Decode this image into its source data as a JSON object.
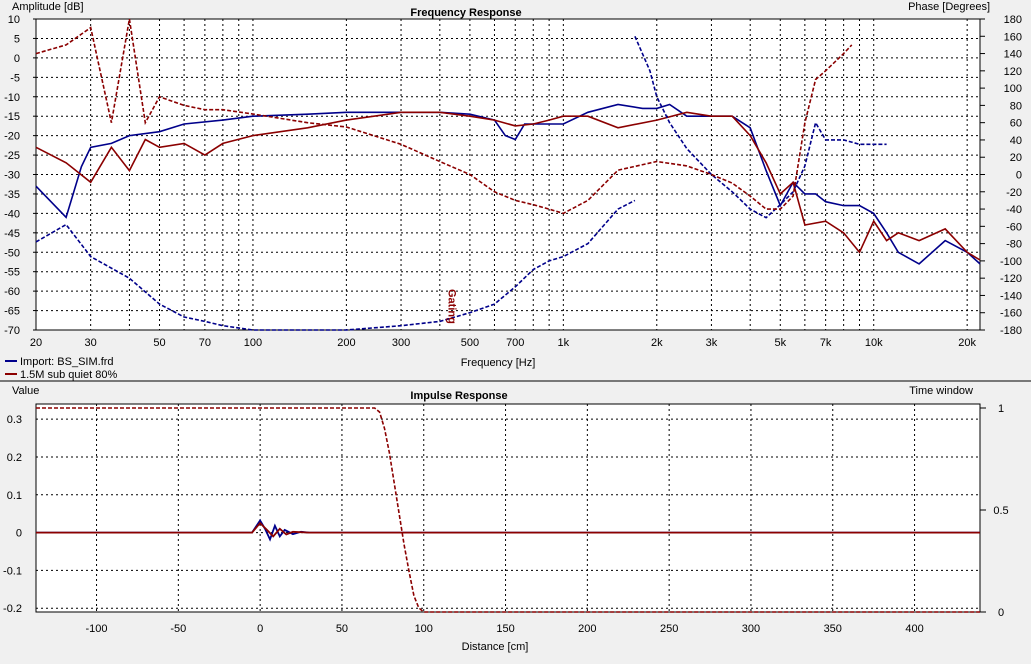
{
  "colors": {
    "blue": "#00008b",
    "red": "#8b0000",
    "grid": "#000000",
    "bg": "#ffffff",
    "window": "#f0f0f0"
  },
  "frequency_chart": {
    "title": "Frequency Response",
    "y_left_label": "Amplitude [dB]",
    "y_right_label": "Phase [Degrees]",
    "x_label": "Frequency [Hz]",
    "gating_label": "Gating",
    "x_ticks": [
      "20",
      "30",
      "50",
      "70",
      "100",
      "200",
      "300",
      "500",
      "700",
      "1k",
      "2k",
      "3k",
      "5k",
      "7k",
      "10k",
      "20k"
    ],
    "x_tick_values": [
      20,
      30,
      50,
      70,
      100,
      200,
      300,
      500,
      700,
      1000,
      2000,
      3000,
      5000,
      7000,
      10000,
      20000
    ],
    "y_left_ticks": [
      "10",
      "5",
      "0",
      "-5",
      "-10",
      "-15",
      "-20",
      "-25",
      "-30",
      "-35",
      "-40",
      "-45",
      "-50",
      "-55",
      "-60",
      "-65",
      "-70"
    ],
    "y_right_ticks": [
      "180",
      "160",
      "140",
      "120",
      "100",
      "80",
      "60",
      "40",
      "20",
      "0",
      "-20",
      "-40",
      "-60",
      "-80",
      "-100",
      "-120",
      "-140",
      "-160",
      "-180"
    ],
    "legend": [
      {
        "label": "Import: BS_SIM.frd",
        "color": "#00008b"
      },
      {
        "label": "1.5M sub quiet 80%",
        "color": "#8b0000"
      }
    ]
  },
  "impulse_chart": {
    "title": "Impulse Response",
    "y_left_label": "Value",
    "y_right_label": "Time window",
    "x_label": "Distance [cm]",
    "x_ticks": [
      "-100",
      "-50",
      "0",
      "50",
      "100",
      "150",
      "200",
      "250",
      "300",
      "350",
      "400"
    ],
    "y_left_ticks": [
      "0.3",
      "0.2",
      "0.1",
      "0",
      "-0.1",
      "-0.2"
    ],
    "y_right_ticks": [
      "1",
      "0.5",
      "0"
    ]
  },
  "chart_data": [
    {
      "type": "line",
      "title": "Frequency Response",
      "xlabel": "Frequency [Hz]",
      "ylabel": "Amplitude [dB]",
      "y2label": "Phase [Degrees]",
      "xscale": "log",
      "xlim": [
        20,
        22000
      ],
      "ylim": [
        -70,
        10
      ],
      "y2lim": [
        -180,
        180
      ],
      "grid": true,
      "legend_position": "bottom-left",
      "series": [
        {
          "name": "Import: BS_SIM.frd",
          "color": "#00008b",
          "style": "solid",
          "axis": "amplitude",
          "x": [
            20,
            25,
            28,
            30,
            35,
            40,
            50,
            60,
            80,
            100,
            150,
            200,
            300,
            400,
            500,
            600,
            650,
            700,
            750,
            800,
            900,
            1000,
            1200,
            1500,
            1800,
            2000,
            2200,
            2500,
            3000,
            3500,
            4000,
            4500,
            5000,
            5500,
            6000,
            6500,
            7000,
            8000,
            9000,
            10000,
            11000,
            12000,
            14000,
            17000,
            20000,
            22000
          ],
          "y": [
            -33,
            -41,
            -28,
            -23,
            -22,
            -20,
            -19,
            -17,
            -16,
            -15,
            -14.5,
            -14,
            -14,
            -14,
            -14.5,
            -16,
            -20,
            -21,
            -17,
            -17,
            -17,
            -17,
            -14,
            -12,
            -13,
            -13,
            -12,
            -15,
            -15,
            -15,
            -18,
            -29,
            -38,
            -32,
            -35,
            -35,
            -37,
            -38,
            -38,
            -40,
            -45,
            -50,
            -53,
            -47,
            -50,
            -53
          ]
        },
        {
          "name": "1.5M sub quiet 80%",
          "color": "#8b0000",
          "style": "solid",
          "axis": "amplitude",
          "x": [
            20,
            25,
            30,
            35,
            40,
            45,
            50,
            60,
            70,
            80,
            100,
            150,
            200,
            300,
            400,
            500,
            600,
            700,
            800,
            900,
            1000,
            1200,
            1500,
            2000,
            2500,
            3000,
            3500,
            4000,
            4500,
            5000,
            5500,
            6000,
            7000,
            8000,
            9000,
            10000,
            11000,
            12000,
            14000,
            17000,
            20000,
            22000
          ],
          "y": [
            -23,
            -27,
            -32,
            -23,
            -29,
            -21,
            -23,
            -22,
            -25,
            -22,
            -20,
            -18,
            -16,
            -14,
            -14,
            -15,
            -16,
            -17.5,
            -17,
            -16,
            -15,
            -15,
            -18,
            -16,
            -14,
            -15,
            -15,
            -20,
            -27,
            -35,
            -32,
            -43,
            -42,
            -45,
            -50,
            -42,
            -47,
            -45,
            -47,
            -44,
            -50,
            -52
          ]
        },
        {
          "name": "",
          "color": "#00008b",
          "style": "dashed",
          "axis": "phase",
          "x": [
            20,
            25,
            30,
            40,
            50,
            60,
            70,
            80,
            100,
            150,
            200,
            300,
            400,
            500,
            600,
            700,
            800,
            900,
            1000,
            1200,
            1500,
            1700
          ],
          "y": [
            -78,
            -58,
            -95,
            -120,
            -150,
            -165,
            -170,
            -175,
            -180,
            -180,
            -180,
            -175,
            -170,
            -160,
            -150,
            -130,
            -110,
            -100,
            -95,
            -80,
            -40,
            -30
          ]
        },
        {
          "name": "",
          "color": "#00008b",
          "style": "dashed",
          "axis": "phase",
          "x": [
            1700,
            1900,
            2000,
            2200,
            2500,
            3000,
            3500,
            4000,
            4500,
            5000,
            5500,
            6000,
            6500,
            7000,
            8000,
            9000,
            10000,
            11000
          ],
          "y": [
            160,
            120,
            90,
            60,
            30,
            0,
            -20,
            -40,
            -50,
            -35,
            -20,
            10,
            60,
            40,
            40,
            35,
            35,
            35
          ]
        },
        {
          "name": "",
          "color": "#8b0000",
          "style": "dashed",
          "axis": "phase",
          "x": [
            20,
            25,
            30,
            35,
            40,
            45,
            50,
            60,
            70,
            80,
            100,
            150,
            200,
            300,
            400,
            500,
            600,
            700,
            800,
            900,
            1000,
            1200,
            1500,
            2000,
            2500,
            3000,
            3500,
            4000,
            4500,
            5000,
            5500,
            6000,
            6500,
            7000,
            8000,
            8500
          ],
          "y": [
            140,
            150,
            170,
            60,
            180,
            60,
            90,
            80,
            75,
            75,
            70,
            60,
            55,
            35,
            15,
            0,
            -20,
            -30,
            -35,
            -40,
            -45,
            -30,
            5,
            15,
            10,
            0,
            -10,
            -25,
            -40,
            -40,
            -25,
            60,
            110,
            120,
            140,
            150
          ]
        }
      ]
    },
    {
      "type": "line",
      "title": "Impulse Response",
      "xlabel": "Distance [cm]",
      "ylabel": "Value",
      "y2label": "Time window",
      "xlim": [
        -137,
        440
      ],
      "ylim": [
        -0.21,
        0.34
      ],
      "y2lim": [
        0,
        1
      ],
      "grid": true,
      "series": [
        {
          "name": "Import: BS_SIM.frd",
          "color": "#00008b",
          "style": "solid",
          "axis": "value",
          "x": [
            -137,
            -5,
            0,
            3,
            6,
            9,
            12,
            15,
            20,
            25,
            30,
            40,
            60,
            100,
            440
          ],
          "y": [
            0,
            0,
            0.032,
            0.01,
            -0.018,
            0.018,
            -0.01,
            0.007,
            -0.004,
            0.002,
            0,
            0,
            0,
            0,
            0
          ]
        },
        {
          "name": "1.5M sub quiet 80%",
          "color": "#8b0000",
          "style": "solid",
          "axis": "value",
          "x": [
            -137,
            -5,
            0,
            4,
            8,
            12,
            16,
            20,
            30,
            440
          ],
          "y": [
            0,
            0,
            0.025,
            0.008,
            -0.01,
            0.01,
            -0.005,
            0.002,
            0,
            0
          ]
        },
        {
          "name": "",
          "color": "#8b0000",
          "style": "dashed",
          "axis": "window",
          "x": [
            -137,
            70,
            73,
            76,
            79,
            82,
            85,
            88,
            91,
            94,
            97,
            100,
            440
          ],
          "y": [
            1,
            1,
            0.98,
            0.9,
            0.78,
            0.63,
            0.48,
            0.33,
            0.2,
            0.08,
            0.02,
            0,
            0
          ]
        }
      ]
    }
  ]
}
